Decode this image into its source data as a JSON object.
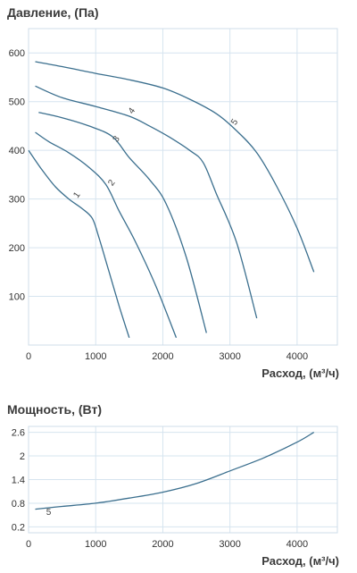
{
  "chart_data": [
    {
      "type": "line",
      "title": "Давление, (Па)",
      "xlabel": "Расход, (м³/ч)",
      "ylabel": "",
      "xlim": [
        0,
        4600
      ],
      "ylim": [
        0,
        650
      ],
      "xticks": [
        0,
        1000,
        2000,
        3000,
        4000
      ],
      "yticks": [
        100,
        200,
        300,
        400,
        500,
        600
      ],
      "grid": true,
      "series": [
        {
          "name": "1",
          "x": [
            0,
            200,
            400,
            600,
            800,
            950,
            1050,
            1200,
            1350,
            1500
          ],
          "y": [
            400,
            360,
            325,
            300,
            280,
            260,
            220,
            150,
            80,
            15
          ],
          "label_at": [
            750,
            305
          ]
        },
        {
          "name": "2",
          "x": [
            100,
            300,
            600,
            900,
            1150,
            1350,
            1600,
            1900,
            2200
          ],
          "y": [
            437,
            418,
            395,
            365,
            330,
            275,
            210,
            120,
            15
          ],
          "label_at": [
            1270,
            330
          ]
        },
        {
          "name": "3",
          "x": [
            150,
            500,
            900,
            1250,
            1500,
            1800,
            2050,
            2350,
            2650
          ],
          "y": [
            478,
            467,
            450,
            428,
            385,
            340,
            290,
            180,
            25
          ],
          "label_at": [
            1340,
            420
          ]
        },
        {
          "name": "4",
          "x": [
            100,
            500,
            1000,
            1500,
            1800,
            2100,
            2400,
            2600,
            2800,
            3100,
            3400
          ],
          "y": [
            532,
            508,
            490,
            470,
            450,
            427,
            400,
            375,
            310,
            210,
            55
          ],
          "label_at": [
            1570,
            478
          ]
        },
        {
          "name": "5",
          "x": [
            100,
            500,
            1000,
            1500,
            2000,
            2400,
            2800,
            3100,
            3400,
            3700,
            4000,
            4250
          ],
          "y": [
            582,
            572,
            558,
            545,
            528,
            505,
            475,
            440,
            395,
            325,
            240,
            150
          ],
          "label_at": [
            3100,
            455
          ]
        }
      ]
    },
    {
      "type": "line",
      "title": "Мощность, (Вт)",
      "xlabel": "Расход, (м³/ч)",
      "ylabel": "",
      "xlim": [
        0,
        4600
      ],
      "ylim": [
        0.05,
        2.75
      ],
      "xticks": [
        0,
        1000,
        2000,
        3000,
        4000
      ],
      "yticks": [
        0.2,
        0.8,
        1.4,
        2,
        2.6
      ],
      "ytick_labels": [
        "0.2",
        "0.8",
        "1.4",
        "2",
        "2.6"
      ],
      "grid": true,
      "series": [
        {
          "name": "5",
          "x": [
            100,
            500,
            1000,
            1500,
            2000,
            2500,
            3000,
            3500,
            4000,
            4250
          ],
          "y": [
            0.65,
            0.72,
            0.8,
            0.93,
            1.08,
            1.3,
            1.62,
            1.95,
            2.35,
            2.6
          ],
          "label_at": [
            300,
            0.5
          ]
        }
      ]
    }
  ]
}
